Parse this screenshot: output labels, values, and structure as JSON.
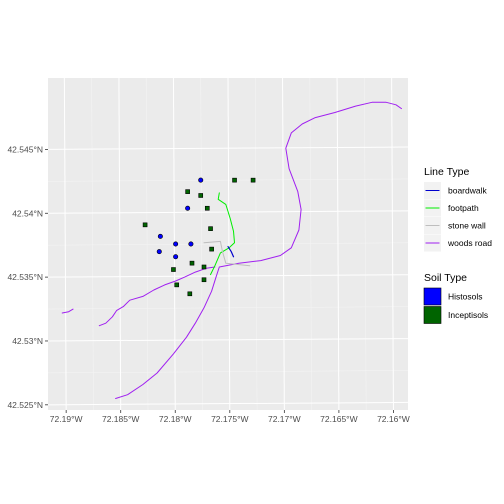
{
  "chart_data": {
    "type": "map",
    "xlim": [
      -72.1915,
      -72.1585
    ],
    "ylim": [
      42.5245,
      42.5505
    ],
    "x_ticks": [
      {
        "value": -72.19,
        "label": "72.19°W"
      },
      {
        "value": -72.185,
        "label": "72.185°W"
      },
      {
        "value": -72.18,
        "label": "72.18°W"
      },
      {
        "value": -72.175,
        "label": "72.175°W"
      },
      {
        "value": -72.17,
        "label": "72.17°W"
      },
      {
        "value": -72.165,
        "label": "72.165°W"
      },
      {
        "value": -72.16,
        "label": "72.16°W"
      }
    ],
    "y_ticks": [
      {
        "value": 42.525,
        "label": "42.525°N"
      },
      {
        "value": 42.53,
        "label": "42.53°N"
      },
      {
        "value": 42.535,
        "label": "42.535°N"
      },
      {
        "value": 42.54,
        "label": "42.54°N"
      },
      {
        "value": 42.545,
        "label": "42.545°N"
      }
    ],
    "grid": true,
    "legend_position": "right",
    "line_legend": {
      "title": "Line Type",
      "entries": [
        {
          "name": "boardwalk",
          "color": "#0000cd"
        },
        {
          "name": "footpath",
          "color": "#00ee00"
        },
        {
          "name": "stone wall",
          "color": "#bebebe"
        },
        {
          "name": "woods road",
          "color": "#a020f0"
        }
      ]
    },
    "point_legend": {
      "title": "Soil Type",
      "entries": [
        {
          "name": "Histosols",
          "color": "#0000ff"
        },
        {
          "name": "Inceptisols",
          "color": "#006400"
        }
      ]
    },
    "lines": [
      {
        "type": "woods road",
        "coords": [
          [
            -72.1902,
            42.5321
          ],
          [
            -72.1896,
            42.5322
          ],
          [
            -72.1892,
            42.5324
          ]
        ]
      },
      {
        "type": "woods road",
        "coords": [
          [
            -72.1868,
            42.5311
          ],
          [
            -72.1862,
            42.5313
          ],
          [
            -72.1856,
            42.5318
          ],
          [
            -72.1852,
            42.5323
          ],
          [
            -72.1846,
            42.5326
          ],
          [
            -72.184,
            42.5331
          ],
          [
            -72.1828,
            42.5334
          ],
          [
            -72.1818,
            42.5339
          ],
          [
            -72.1808,
            42.5343
          ],
          [
            -72.1798,
            42.5346
          ],
          [
            -72.179,
            42.5349
          ],
          [
            -72.178,
            42.5353
          ],
          [
            -72.177,
            42.5356
          ],
          [
            -72.1762,
            42.5357
          ]
        ]
      },
      {
        "type": "woods road",
        "coords": [
          [
            -72.1853,
            42.5254
          ],
          [
            -72.1842,
            42.5257
          ],
          [
            -72.1828,
            42.5265
          ],
          [
            -72.1815,
            42.5274
          ],
          [
            -72.18,
            42.5289
          ],
          [
            -72.1788,
            42.5302
          ],
          [
            -72.178,
            42.5313
          ],
          [
            -72.1772,
            42.5325
          ],
          [
            -72.1765,
            42.5338
          ],
          [
            -72.1761,
            42.5349
          ],
          [
            -72.1758,
            42.5357
          ],
          [
            -72.174,
            42.536
          ],
          [
            -72.172,
            42.5362
          ],
          [
            -72.1702,
            42.5366
          ],
          [
            -72.1692,
            42.5372
          ],
          [
            -72.1685,
            42.5386
          ],
          [
            -72.1683,
            42.5402
          ],
          [
            -72.1686,
            42.5416
          ],
          [
            -72.1694,
            42.5434
          ],
          [
            -72.1697,
            42.545
          ],
          [
            -72.1692,
            42.5462
          ],
          [
            -72.1682,
            42.5469
          ],
          [
            -72.167,
            42.5474
          ],
          [
            -72.1652,
            42.5478
          ],
          [
            -72.1633,
            42.5483
          ],
          [
            -72.1618,
            42.5486
          ],
          [
            -72.1605,
            42.5486
          ],
          [
            -72.1596,
            42.5484
          ],
          [
            -72.1591,
            42.5481
          ]
        ]
      },
      {
        "type": "footpath",
        "coords": [
          [
            -72.1758,
            42.5415
          ],
          [
            -72.1759,
            42.541
          ],
          [
            -72.1752,
            42.5406
          ],
          [
            -72.1748,
            42.5395
          ],
          [
            -72.1745,
            42.5385
          ],
          [
            -72.1744,
            42.5376
          ],
          [
            -72.1749,
            42.5372
          ],
          [
            -72.1757,
            42.5368
          ],
          [
            -72.1762,
            42.5358
          ],
          [
            -72.1766,
            42.5351
          ]
        ]
      },
      {
        "type": "boardwalk",
        "coords": [
          [
            -72.175,
            42.5373
          ],
          [
            -72.1747,
            42.5369
          ],
          [
            -72.1745,
            42.5365
          ]
        ]
      },
      {
        "type": "stone wall",
        "coords": [
          [
            -72.1772,
            42.5376
          ],
          [
            -72.1757,
            42.5377
          ],
          [
            -72.1755,
            42.5369
          ],
          [
            -72.1752,
            42.536
          ],
          [
            -72.1742,
            42.5359
          ],
          [
            -72.173,
            42.5358
          ]
        ]
      }
    ],
    "points": [
      {
        "soil": "Histosols",
        "lon": -72.1775,
        "lat": 42.5425
      },
      {
        "soil": "Histosols",
        "lon": -72.1787,
        "lat": 42.5403
      },
      {
        "soil": "Histosols",
        "lon": -72.1812,
        "lat": 42.5381
      },
      {
        "soil": "Histosols",
        "lon": -72.1798,
        "lat": 42.5375
      },
      {
        "soil": "Histosols",
        "lon": -72.1784,
        "lat": 42.5375
      },
      {
        "soil": "Histosols",
        "lon": -72.1813,
        "lat": 42.5369
      },
      {
        "soil": "Histosols",
        "lon": -72.1798,
        "lat": 42.5365
      },
      {
        "soil": "Inceptisols",
        "lon": -72.1744,
        "lat": 42.5425
      },
      {
        "soil": "Inceptisols",
        "lon": -72.1727,
        "lat": 42.5425
      },
      {
        "soil": "Inceptisols",
        "lon": -72.1787,
        "lat": 42.5416
      },
      {
        "soil": "Inceptisols",
        "lon": -72.1775,
        "lat": 42.5413
      },
      {
        "soil": "Inceptisols",
        "lon": -72.1769,
        "lat": 42.5403
      },
      {
        "soil": "Inceptisols",
        "lon": -72.1826,
        "lat": 42.539
      },
      {
        "soil": "Inceptisols",
        "lon": -72.1766,
        "lat": 42.5387
      },
      {
        "soil": "Inceptisols",
        "lon": -72.1765,
        "lat": 42.5371
      },
      {
        "soil": "Inceptisols",
        "lon": -72.1783,
        "lat": 42.536
      },
      {
        "soil": "Inceptisols",
        "lon": -72.1772,
        "lat": 42.5357
      },
      {
        "soil": "Inceptisols",
        "lon": -72.18,
        "lat": 42.5355
      },
      {
        "soil": "Inceptisols",
        "lon": -72.1772,
        "lat": 42.5347
      },
      {
        "soil": "Inceptisols",
        "lon": -72.1797,
        "lat": 42.5343
      },
      {
        "soil": "Inceptisols",
        "lon": -72.1785,
        "lat": 42.5336
      }
    ]
  }
}
